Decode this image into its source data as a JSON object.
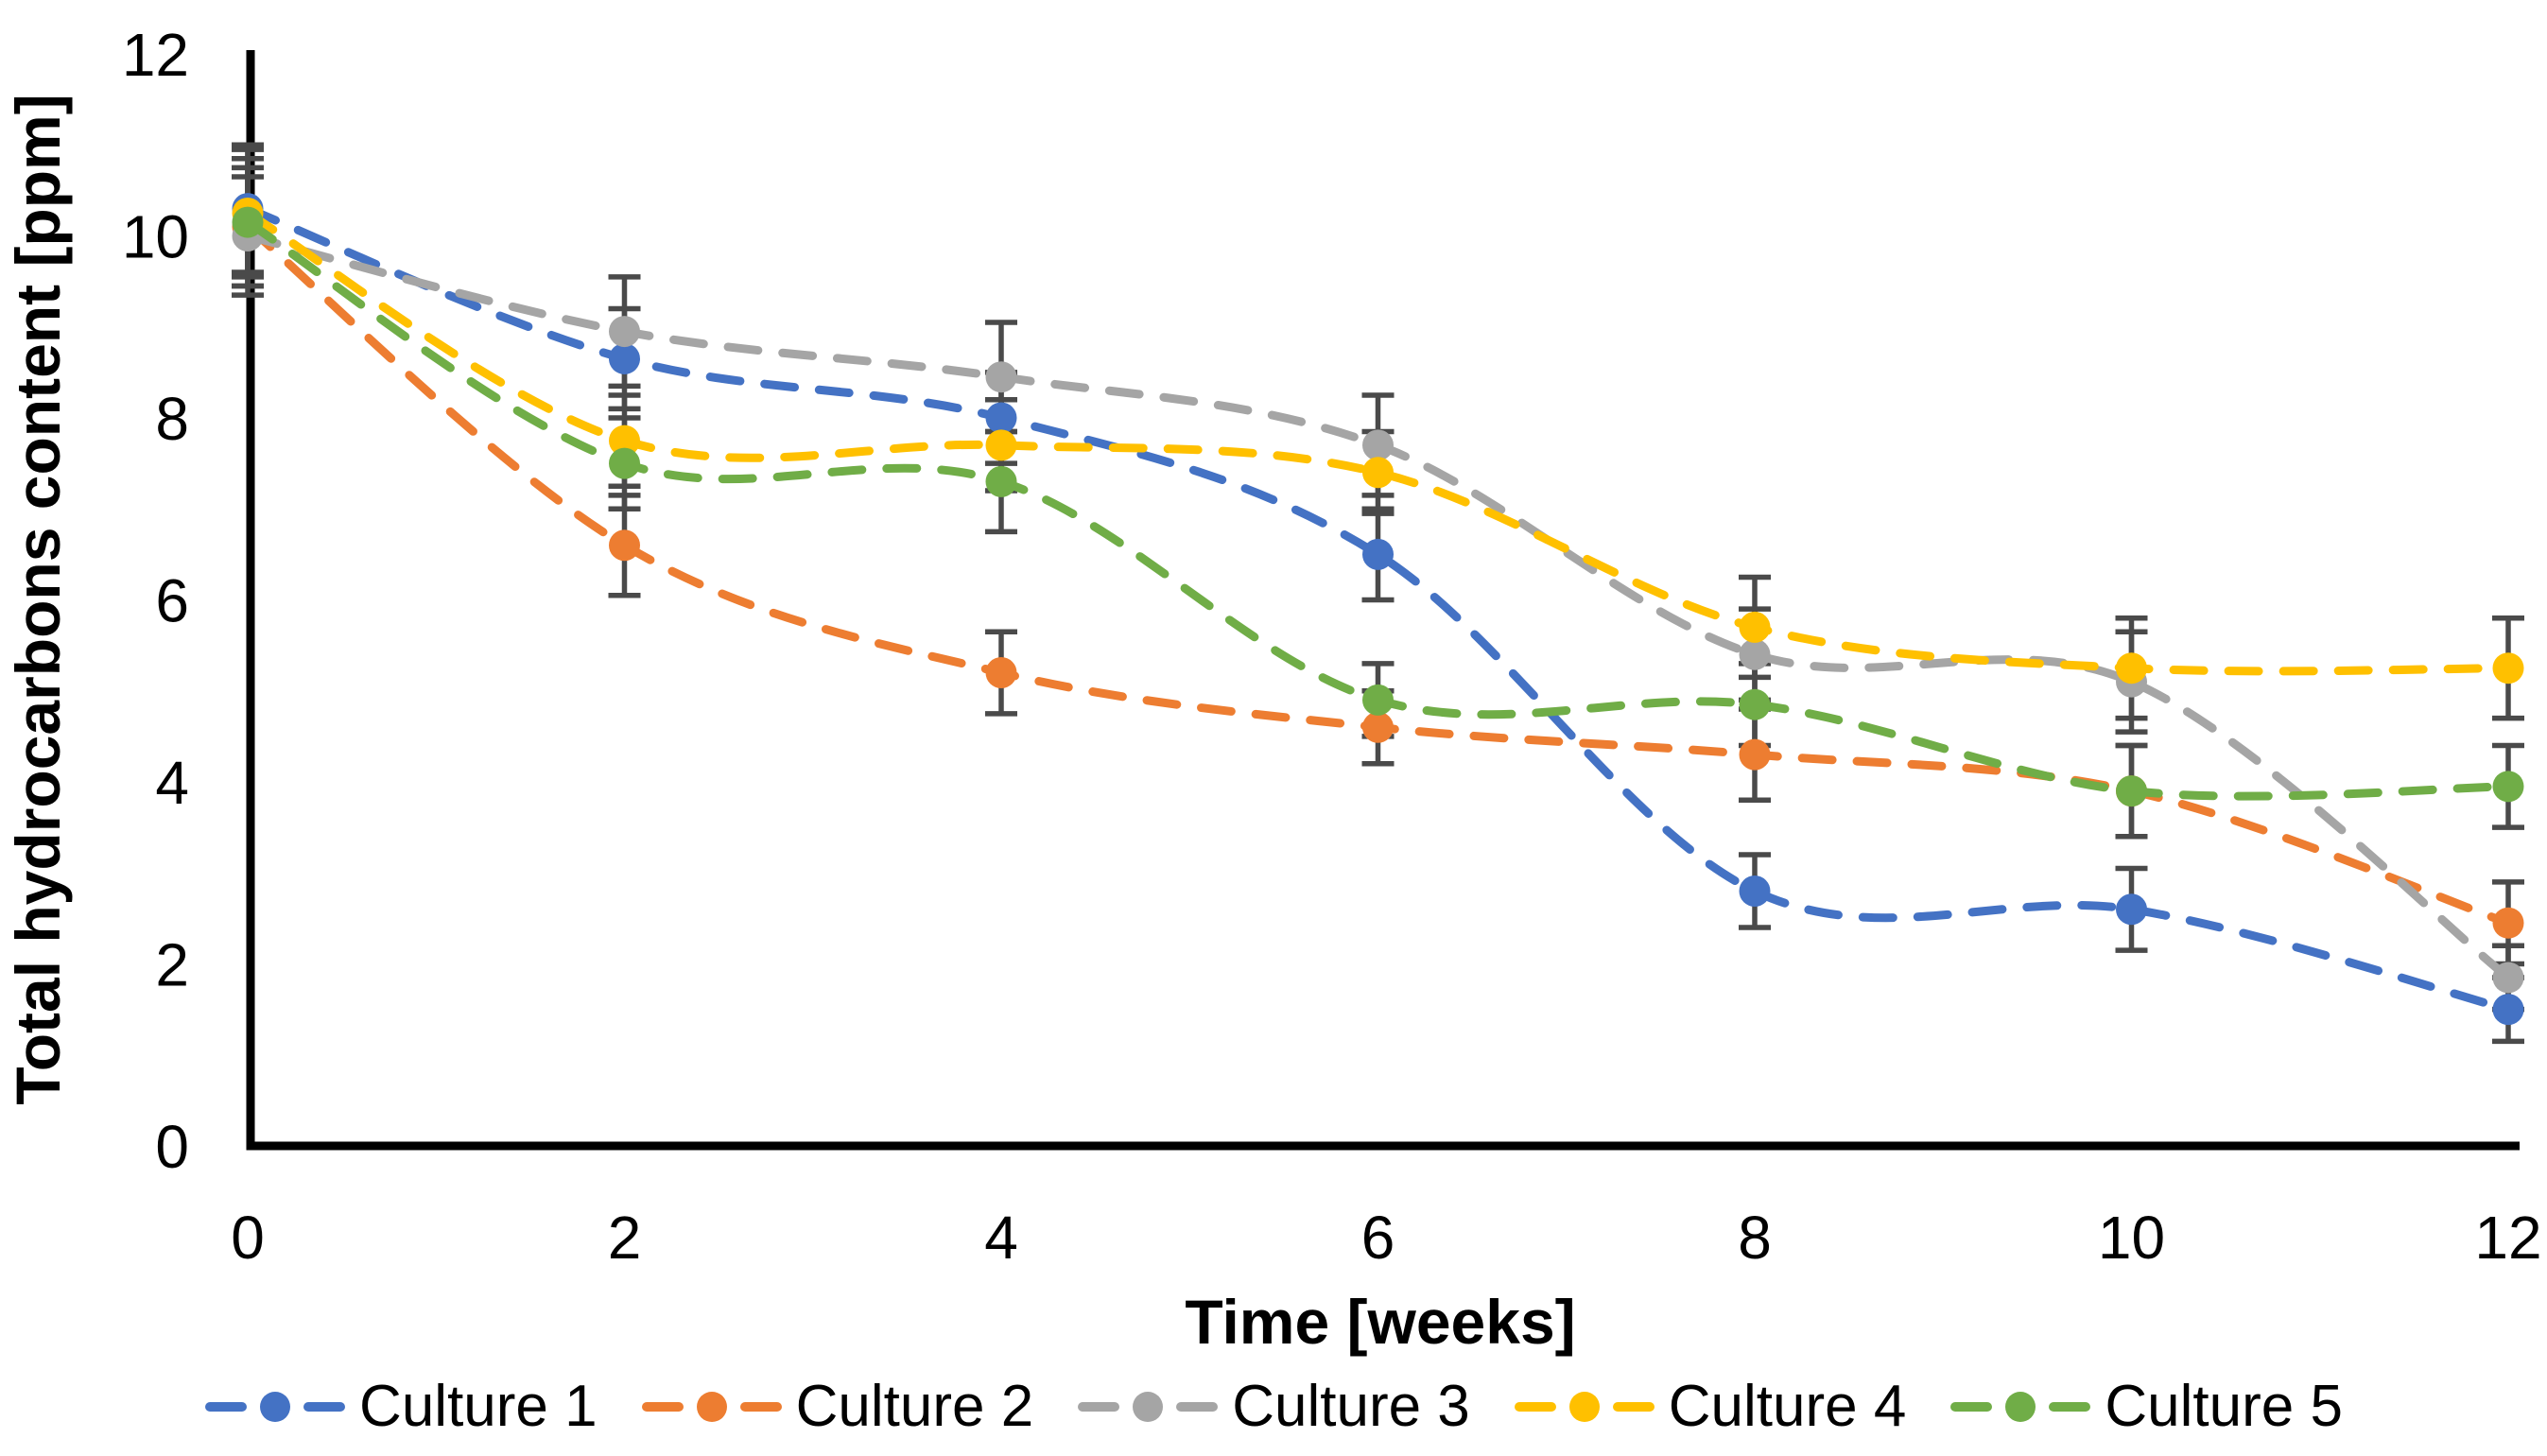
{
  "chart_data": {
    "type": "line",
    "style": "smooth-dashed-with-markers-and-error-bars",
    "x": [
      0,
      2,
      4,
      6,
      8,
      10,
      12
    ],
    "x_ticks": [
      0,
      2,
      4,
      6,
      8,
      10,
      12
    ],
    "y_ticks": [
      0,
      2,
      4,
      6,
      8,
      10,
      12
    ],
    "xlim": [
      0,
      12
    ],
    "ylim": [
      0,
      12
    ],
    "xlabel": "Time [weeks]",
    "ylabel": "Total hydrocarbons content [ppm]",
    "grid": false,
    "legend_position": "bottom",
    "error_bar_color": "#4a4a4a",
    "series": [
      {
        "name": "Culture 1",
        "color": "#4472C4",
        "values": [
          10.3,
          8.65,
          8.0,
          6.5,
          2.8,
          2.6,
          1.5
        ],
        "errors": [
          0.7,
          0.55,
          0.5,
          0.5,
          0.4,
          0.45,
          0.35
        ]
      },
      {
        "name": "Culture 2",
        "color": "#ED7D31",
        "values": [
          10.1,
          6.6,
          5.2,
          4.6,
          4.3,
          3.9,
          2.45
        ],
        "errors": [
          0.65,
          0.55,
          0.45,
          0.4,
          0.5,
          0.5,
          0.45
        ]
      },
      {
        "name": "Culture 3",
        "color": "#A5A5A5",
        "values": [
          10.0,
          8.95,
          8.45,
          7.7,
          5.4,
          5.1,
          1.85
        ],
        "errors": [
          0.65,
          0.6,
          0.6,
          0.55,
          0.5,
          0.55,
          0.35
        ]
      },
      {
        "name": "Culture 4",
        "color": "#FFC000",
        "values": [
          10.25,
          7.75,
          7.7,
          7.4,
          5.7,
          5.25,
          5.25
        ],
        "errors": [
          0.7,
          0.5,
          0.5,
          0.45,
          0.55,
          0.55,
          0.55
        ]
      },
      {
        "name": "Culture 5",
        "color": "#70AD47",
        "values": [
          10.15,
          7.5,
          7.3,
          4.9,
          4.85,
          3.9,
          3.95
        ],
        "errors": [
          0.7,
          0.5,
          0.55,
          0.4,
          0.45,
          0.5,
          0.45
        ]
      }
    ]
  }
}
